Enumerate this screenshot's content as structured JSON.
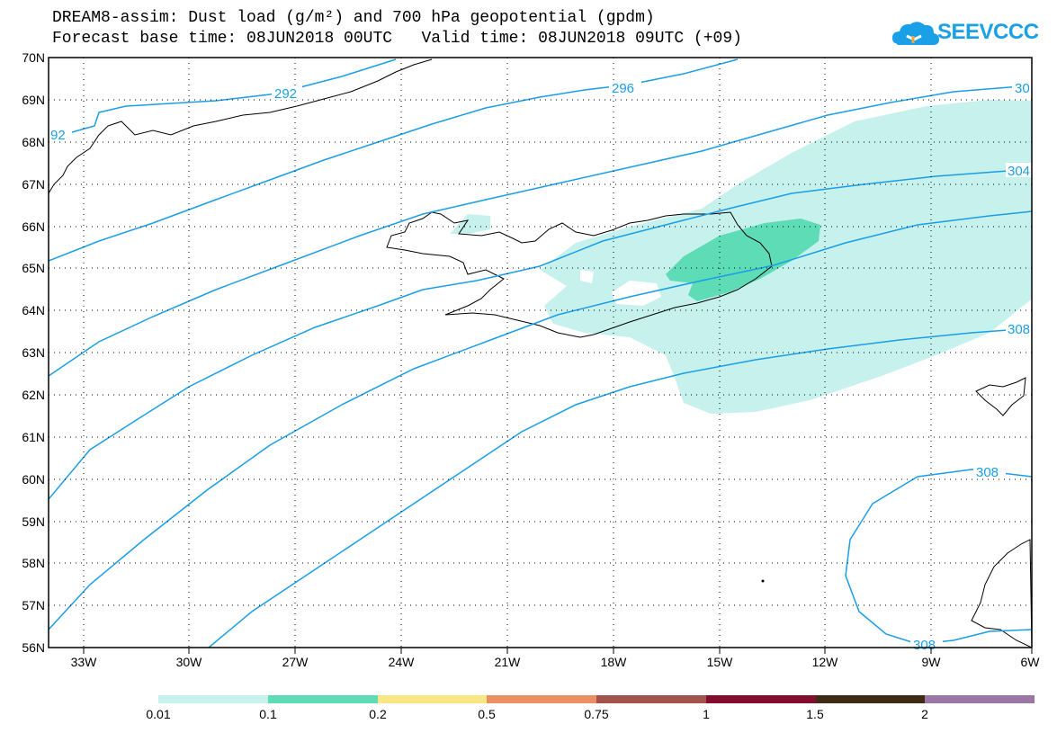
{
  "title": {
    "line1": "DREAM8-assim: Dust load (g/m²) and 700 hPa geopotential (gpdm)",
    "line2": "Forecast base time: 08JUN2018 00UTC   Valid time: 08JUN2018 09UTC (+09)"
  },
  "logo": {
    "text": "SEEVCCC",
    "icon": "cloud-icon",
    "color": "#1aa0e6"
  },
  "axes": {
    "latitudes": [
      "70N",
      "69N",
      "68N",
      "67N",
      "66N",
      "65N",
      "64N",
      "63N",
      "62N",
      "61N",
      "60N",
      "59N",
      "58N",
      "57N",
      "56N"
    ],
    "longitudes": [
      "33W",
      "30W",
      "27W",
      "24W",
      "21W",
      "18W",
      "15W",
      "12W",
      "9W",
      "6W"
    ],
    "lat_range": [
      56,
      70
    ],
    "lon_range": [
      -34.5,
      -6
    ]
  },
  "contours": {
    "color": "#1a9ee6",
    "labels": [
      "292",
      "92",
      "296",
      "30",
      "304",
      "308",
      "308",
      "308"
    ]
  },
  "dust": {
    "light_color": "#c6f1ec",
    "medium_color": "#5ddcb6"
  },
  "colorbar": {
    "colors": [
      "#c6f1ec",
      "#5ddcb6",
      "#f9e784",
      "#ec8f64",
      "#a3524c",
      "#820d2c",
      "#3f2a14",
      "#9c77a6"
    ],
    "labels": [
      "0.01",
      "0.1",
      "0.2",
      "0.5",
      "0.75",
      "1",
      "1.5",
      "2"
    ]
  }
}
